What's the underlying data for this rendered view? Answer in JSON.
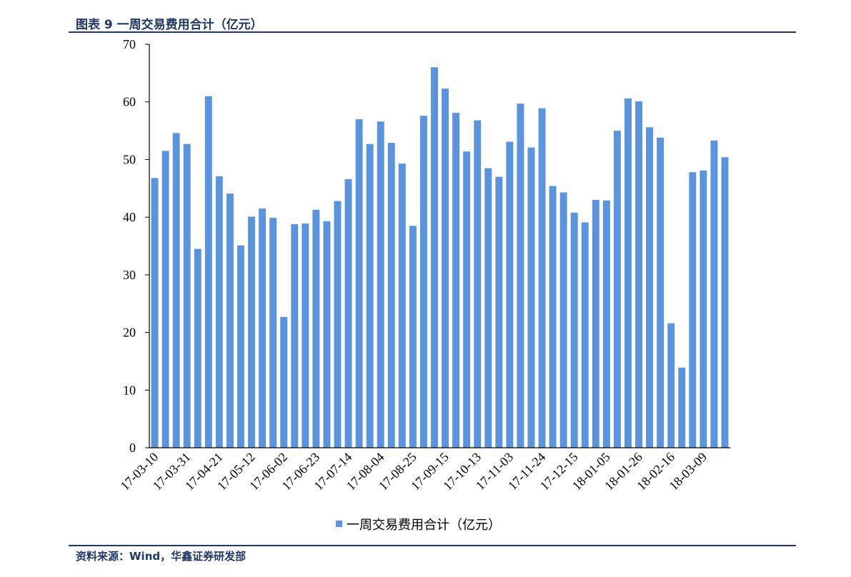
{
  "header": {
    "title": "图表 9 一周交易费用合计（亿元）"
  },
  "footer": {
    "source": "资料来源：Wind，华鑫证券研发部"
  },
  "colors": {
    "bar": "#5b93dc",
    "rule": "#1f3864",
    "axis": "#000000"
  },
  "chart_data": {
    "type": "bar",
    "title": "",
    "xlabel": "",
    "ylabel": "",
    "ylim": [
      0,
      70
    ],
    "yticks": [
      0,
      10,
      20,
      30,
      40,
      50,
      60,
      70
    ],
    "x_tick_labels": [
      "17-03-10",
      "17-03-31",
      "17-04-21",
      "17-05-12",
      "17-06-02",
      "17-06-23",
      "17-07-14",
      "17-08-04",
      "17-08-25",
      "17-09-15",
      "17-10-13",
      "17-11-03",
      "17-11-24",
      "17-12-15",
      "18-01-05",
      "18-01-26",
      "18-02-16",
      "18-03-09"
    ],
    "x_tick_every": 3,
    "legend": {
      "position": "bottom"
    },
    "series": [
      {
        "name": "一周交易费用合计（亿元）",
        "values": [
          46.8,
          51.5,
          54.6,
          52.7,
          34.5,
          61.0,
          47.1,
          44.1,
          35.1,
          40.1,
          41.5,
          39.9,
          22.7,
          38.8,
          38.9,
          41.3,
          39.3,
          42.8,
          46.6,
          57.0,
          52.7,
          56.6,
          52.9,
          49.3,
          38.5,
          57.6,
          66.0,
          62.3,
          58.1,
          51.4,
          56.8,
          48.5,
          47.0,
          53.1,
          59.7,
          52.1,
          58.9,
          45.4,
          44.3,
          40.8,
          39.1,
          43.0,
          42.9,
          55.0,
          60.6,
          60.1,
          55.6,
          53.8,
          21.6,
          13.9,
          47.8,
          48.1,
          53.3,
          50.4
        ]
      }
    ]
  }
}
